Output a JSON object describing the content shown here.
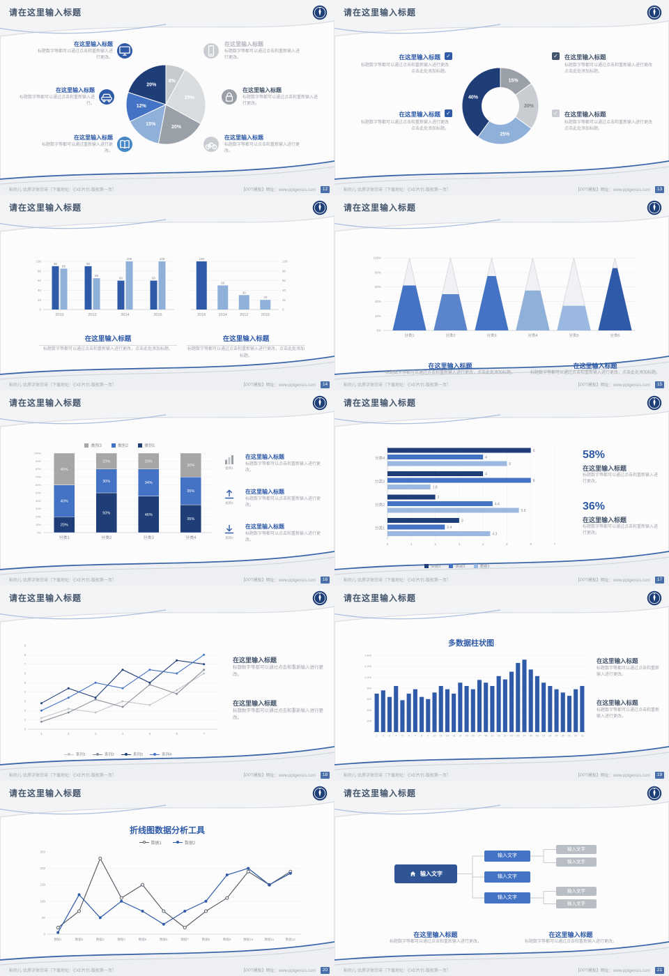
{
  "common": {
    "slide_title": "请在这里输入标题",
    "item_title": "在这里输入标题",
    "footer_left": "稻壳儿·优质字体仿宋（下载地址：EXE片包·版权第一页）",
    "footer_right": "【PPT模板】网址：www.pptgenius.com",
    "accent_blue": "#2e5aa8",
    "navy": "#1f3e78",
    "title_dark": "#44546a"
  },
  "slides": [
    {
      "page_no": "12",
      "left_items": [
        {
          "icon": "monitor-icon",
          "icon_bg": "#2e5aa8",
          "title": "在这里输入标题",
          "title_color": "#2e5aa8",
          "body": "标题数字等都可以通过点击和重新输入进行更改。"
        },
        {
          "icon": "car-icon",
          "icon_bg": "#2e5aa8",
          "title": "在这里输入标题",
          "title_color": "#2e5aa8",
          "body": "标题数字等都可以通过点击和重新输入进行。"
        },
        {
          "icon": "book-icon",
          "icon_bg": "#4586c6",
          "title": "在这里输入标题",
          "title_color": "#2e5aa8",
          "body": "标题数字等都可以通过重新输入进行更改。"
        }
      ],
      "right_items": [
        {
          "icon": "phone-icon",
          "icon_bg": "#c9cdd2",
          "title": "在这里输入标题",
          "title_color": "#b3b8bf",
          "body": "标题数字等都可以通过点击和重新输入进行更改。"
        },
        {
          "icon": "lock-icon",
          "icon_bg": "#9aa0a8",
          "title": "在这里输入标题",
          "title_color": "#44546a",
          "body": "标题数字等都可以通过点击和重新输入进行更改。"
        },
        {
          "icon": "bicycle-icon",
          "icon_bg": "#c9cdd2",
          "title": "在这里输入标题",
          "title_color": "#2e5aa8",
          "body": "标题数字等都可以点击和重新输入进行更改。"
        }
      ]
    },
    {
      "page_no": "13",
      "left_items": [
        {
          "title": "在这里输入标题",
          "body": "标题数字等都可以通过点击和重新输入进行更改 点击此处添加标题。"
        },
        {
          "title": "在这里输入标题",
          "body": "标题数字等都可以通过点击和重新输入进行更改 点击此处添加标题。"
        }
      ],
      "right_items": [
        {
          "title": "在这里输入标题",
          "body": "标题数字等都可以通过点击和重新输入进行更改 点击此处添加标题。"
        },
        {
          "title": "在这里输入标题",
          "body": "标题数字等都可以通过点击和重新输入进行更改 点击此处添加标题。"
        }
      ],
      "check_colors": {
        "left": [
          "#2e5aa8",
          "#2e5aa8"
        ],
        "right": [
          "#44546a",
          "#c9ccd1"
        ]
      }
    },
    {
      "page_no": "14",
      "blocks": [
        {
          "title": "在这里输入标题",
          "body": "标题数字等都可以通过点击和重新输入进行更改，点击此处添加标题。"
        },
        {
          "title": "在这里输入标题",
          "body": "标题数字等都可以通过点击和重新输入进行更改，点击此处添加标题。"
        }
      ]
    },
    {
      "page_no": "15",
      "blocks": [
        {
          "title": "在这里输入标题",
          "body": "标题数字等都可以通过点击和重新输入进行更改，点击此处添加标题。"
        },
        {
          "title": "在这里输入标题",
          "body": "标题数字等都可以通过点击和重新输入进行更改，点击此处添加标题。"
        }
      ]
    },
    {
      "page_no": "16",
      "items": [
        {
          "icon": "bar-chart-icon",
          "caption": "类目1",
          "title": "在这里输入标题",
          "body": "标题数字等都可以点击和重新输入进行更改。"
        },
        {
          "icon": "upload-icon",
          "caption": "类目2",
          "title": "在这里输入标题",
          "body": "标题数字等都可以点击和重新输入进行更改。"
        },
        {
          "icon": "download-icon",
          "caption": "类目3",
          "title": "在这里输入标题",
          "body": "标题数字等都可以点击和重新输入进行更改。"
        }
      ]
    },
    {
      "page_no": "17",
      "stats": [
        {
          "pct": "58%",
          "title": "在这里输入标题",
          "body": "标题数字等都可以通过点击和重新输入进行更改。"
        },
        {
          "pct": "36%",
          "title": "在这里输入标题",
          "body": "标题数字等都可以通过点击和重新输入进行更改。"
        }
      ]
    },
    {
      "page_no": "18",
      "blocks": [
        {
          "title": "在这里输入标题",
          "body": "标题数字等都可以通过点击和重新输入进行更改。"
        },
        {
          "title": "在这里输入标题",
          "body": "标题数字等都可以通过点击和重新输入进行更改。"
        }
      ]
    },
    {
      "page_no": "19",
      "chart_title": "多数据柱状图",
      "blocks": [
        {
          "title": "在这里输入标题",
          "body": "标题数字等都可以通过点击和重新输入进行更改。"
        },
        {
          "title": "在这里输入标题",
          "body": "标题数字等都可以通过点击和重新输入进行更改。"
        }
      ]
    },
    {
      "page_no": "20",
      "chart_title": "折线图数据分析工具"
    },
    {
      "page_no": "21",
      "diagram": {
        "root": "输入文字",
        "children": [
          "输入文字",
          "输入文字",
          "输入文字"
        ],
        "leaves": [
          "输入文字",
          "输入文字",
          "输入文字",
          "输入文字"
        ]
      },
      "blocks": [
        {
          "title": "在这里输入标题",
          "body": "标题数字等都可以通过点击和重新输入进行更改。"
        },
        {
          "title": "在这里输入标题",
          "body": "标题数字等都可以通过点击和重新输入进行更改。"
        }
      ]
    }
  ],
  "chart_data": [
    {
      "slide_page": "12",
      "type": "pie",
      "values": [
        8,
        25,
        20,
        15,
        12,
        20
      ],
      "labels": [
        "8%",
        "25%",
        "20%",
        "15%",
        "12%",
        "20%"
      ],
      "colors": [
        "#c6cacf",
        "#d9dcdf",
        "#9aa0a8",
        "#8fb0d8",
        "#4472c4",
        "#1f3e78"
      ],
      "label_colors": [
        "#ffffff",
        "#ffffff",
        "#ffffff",
        "#ffffff",
        "#ffffff",
        "#ffffff"
      ]
    },
    {
      "slide_page": "13",
      "type": "donut",
      "values": [
        15,
        20,
        25,
        40
      ],
      "labels": [
        "15%",
        "20%",
        "25%",
        "40%"
      ],
      "colors": [
        "#9aa0a8",
        "#c9cdd2",
        "#8fb0d8",
        "#1f3e78"
      ],
      "label_colors": [
        "#ffffff",
        "#7c8187",
        "#ffffff",
        "#ffffff"
      ]
    },
    {
      "slide_page": "14",
      "type": "bar-grouped",
      "categories": [
        "2010",
        "2012",
        "2014",
        "2016"
      ],
      "series": [
        {
          "name": "系列1",
          "color": "#2e5aa8",
          "values": [
            90,
            90,
            60,
            60
          ]
        },
        {
          "name": "系列2",
          "color": "#8fb0d8",
          "values": [
            85,
            65,
            100,
            100
          ]
        }
      ],
      "y_ticks": [
        0,
        20,
        40,
        60,
        80,
        100
      ],
      "ylim": [
        0,
        110
      ]
    },
    {
      "slide_page": "14",
      "type": "bar",
      "categories": [
        "2016",
        "2014",
        "2012",
        "2010"
      ],
      "values": [
        100,
        50,
        30,
        20
      ],
      "colors": [
        "#2e5aa8",
        "#8fb0d8",
        "#8fb0d8",
        "#8fb0d8"
      ],
      "y_ticks": [
        0,
        20,
        40,
        60,
        80,
        100
      ],
      "y_axis_side": "right",
      "ylim": [
        0,
        110
      ]
    },
    {
      "slide_page": "15",
      "type": "pyramid",
      "categories": [
        "分类1",
        "分类2",
        "分类3",
        "分类4",
        "分类5",
        "分类6"
      ],
      "values_pct": [
        62,
        50,
        75,
        55,
        34,
        86
      ],
      "colors": [
        "#4472c4",
        "#5a85cc",
        "#4472c4",
        "#8fb0d8",
        "#9ab8e0",
        "#2e5aa8"
      ],
      "y_ticks": [
        "0%",
        "20%",
        "40%",
        "60%",
        "80%",
        "100%"
      ]
    },
    {
      "slide_page": "16",
      "type": "bar-stacked",
      "categories": [
        "分类1",
        "分类2",
        "分类3",
        "分类4"
      ],
      "series": [
        {
          "name": "类别1",
          "color": "#1f3e78",
          "label_color": "#ffffff",
          "values": [
            20,
            50,
            46,
            35
          ]
        },
        {
          "name": "类别2",
          "color": "#4472c4",
          "label_color": "#ffffff",
          "values": [
            40,
            30,
            34,
            35
          ]
        },
        {
          "name": "类别3",
          "color": "#a6a6a6",
          "label_color": "#f2f3f4",
          "values": [
            40,
            20,
            20,
            30
          ]
        }
      ],
      "legend": [
        {
          "name": "类别3",
          "color": "#a6a6a6"
        },
        {
          "name": "类别2",
          "color": "#4472c4"
        },
        {
          "name": "类别1",
          "color": "#1f3e78"
        }
      ],
      "y_tick_step_pct": 10
    },
    {
      "slide_page": "17",
      "type": "bar-horizontal",
      "categories": [
        "分类4",
        "分类3",
        "分类2",
        "分类1"
      ],
      "series": [
        {
          "name": "类别3",
          "color": "#1f3e78",
          "values": [
            6,
            4,
            2,
            3
          ]
        },
        {
          "name": "类别2",
          "color": "#4472c4",
          "values": [
            4,
            6,
            4.4,
            2.4
          ]
        },
        {
          "name": "类别1",
          "color": "#9ab8e0",
          "values": [
            5,
            1.8,
            5.5,
            4.3
          ]
        }
      ],
      "x_ticks": [
        0,
        1,
        2,
        3,
        4,
        5,
        6,
        7
      ],
      "legend": [
        {
          "name": "类别3",
          "color": "#1f3e78"
        },
        {
          "name": "类别2",
          "color": "#4472c4"
        },
        {
          "name": "类别1",
          "color": "#9ab8e0"
        }
      ]
    },
    {
      "slide_page": "18",
      "type": "line",
      "x": [
        1,
        2,
        3,
        4,
        5,
        6,
        7
      ],
      "y_ticks": [
        0,
        1,
        2,
        3,
        4,
        5,
        6,
        7,
        8,
        9
      ],
      "series": [
        {
          "name": "系列1",
          "color": "#c3c7cc",
          "values": [
            1.2,
            2.2,
            1.8,
            3,
            2.6,
            4.2,
            6
          ]
        },
        {
          "name": "系列2",
          "color": "#8a9099",
          "values": [
            0.8,
            1.8,
            3.2,
            2.4,
            4.8,
            3.8,
            6.4
          ]
        },
        {
          "name": "系列3",
          "color": "#1f3e78",
          "values": [
            2.8,
            4.4,
            3.4,
            6.4,
            5,
            7.4,
            7
          ]
        },
        {
          "name": "系列4",
          "color": "#4472c4",
          "values": [
            2,
            3.4,
            5,
            4.4,
            6.4,
            6,
            8
          ]
        }
      ]
    },
    {
      "slide_page": "19",
      "type": "bar",
      "title": "多数据柱状图",
      "color": "#2e5aa8",
      "x_labels": [
        "1",
        "2",
        "3",
        "4",
        "5",
        "6",
        "7",
        "8",
        "9",
        "10",
        "11",
        "12",
        "13",
        "14",
        "15",
        "16",
        "17",
        "18",
        "19",
        "20",
        "21",
        "22",
        "23",
        "24",
        "25",
        "26",
        "27",
        "28",
        "29",
        "30",
        "31",
        "32",
        "33"
      ],
      "values": [
        700,
        760,
        640,
        840,
        580,
        700,
        780,
        640,
        600,
        720,
        840,
        780,
        700,
        900,
        840,
        780,
        950,
        900,
        840,
        1020,
        960,
        1100,
        1260,
        1320,
        1140,
        1020,
        900,
        840,
        780,
        720,
        660,
        780,
        840
      ],
      "y_ticks": [
        {
          "value": 200,
          "label": "200"
        },
        {
          "value": 400,
          "label": "400"
        },
        {
          "value": 600,
          "label": "600"
        },
        {
          "value": 800,
          "label": "800"
        },
        {
          "value": 1000,
          "label": "1,000"
        },
        {
          "value": 1200,
          "label": "1,200"
        },
        {
          "value": 1400,
          "label": "1,400"
        }
      ]
    },
    {
      "slide_page": "20",
      "type": "line",
      "title": "折线图数据分析工具",
      "x_labels": [
        "数据1",
        "数据2",
        "数据3",
        "数据4",
        "数据5",
        "数据6",
        "数据7",
        "数据8",
        "数据9",
        "数据10",
        "数据11",
        "数据12"
      ],
      "y_ticks": [
        0,
        50,
        100,
        150,
        200,
        250
      ],
      "series": [
        {
          "name": "数据1",
          "color": "#5a6068",
          "marker": "open",
          "values": [
            20,
            70,
            230,
            110,
            150,
            70,
            20,
            70,
            110,
            190,
            150,
            190
          ]
        },
        {
          "name": "数据2",
          "color": "#2e5aa8",
          "marker": "filled",
          "values": [
            5,
            120,
            50,
            100,
            70,
            30,
            70,
            100,
            180,
            200,
            150,
            185
          ]
        }
      ]
    }
  ]
}
